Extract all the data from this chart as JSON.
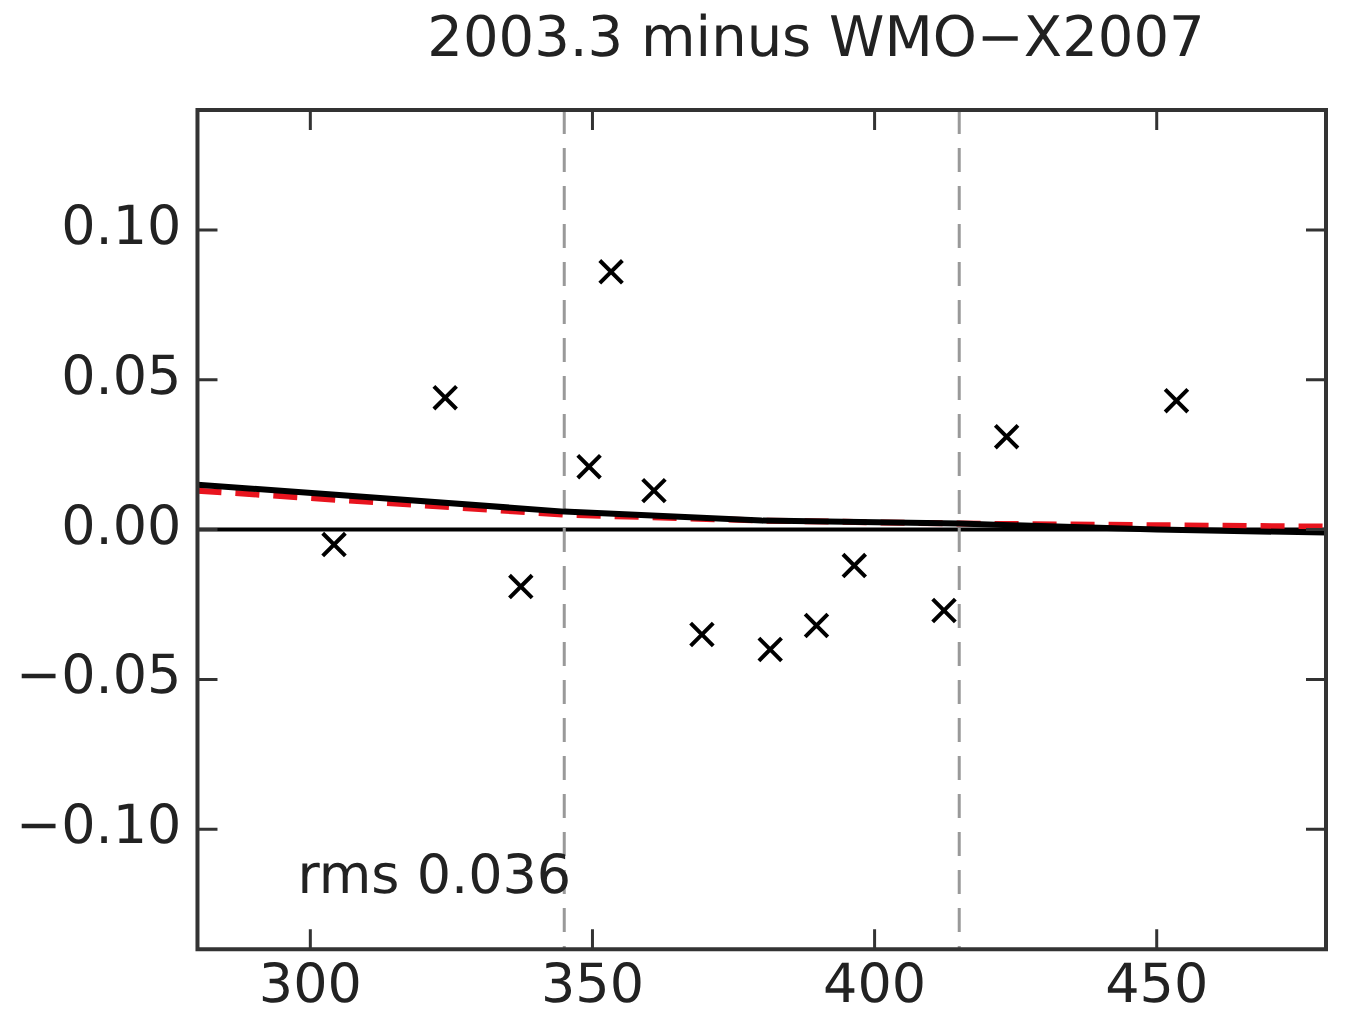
{
  "chart_data": {
    "type": "scatter",
    "title": "2003.3 minus WMO−X2007",
    "xlim": [
      280,
      480
    ],
    "ylim": [
      -0.14,
      0.14
    ],
    "xticks": [
      300,
      350,
      400,
      450
    ],
    "yticks": [
      {
        "value": 0.1,
        "label": "0.10"
      },
      {
        "value": 0.05,
        "label": "0.05"
      },
      {
        "value": 0,
        "label": "0.00"
      },
      {
        "value": -0.05,
        "label": "−0.05"
      },
      {
        "value": -0.1,
        "label": "−0.10"
      }
    ],
    "grid": false,
    "legend": false,
    "series": [
      {
        "type": "scatter",
        "color": "#000000",
        "marker": "cross",
        "x": [
          304.2,
          323.9,
          337.3,
          349.4,
          353.3,
          360.9,
          369.4,
          381.5,
          389.7,
          396.4,
          412.3,
          423.4,
          453.5
        ],
        "values": [
          -0.005,
          0.044,
          -0.019,
          0.021,
          0.086,
          0.013,
          -0.035,
          -0.04,
          -0.032,
          -0.012,
          -0.027,
          0.031,
          0.043
        ]
      },
      {
        "type": "line",
        "color": "#000000",
        "marker": "none",
        "line_style": "solid",
        "x": [
          280,
          345,
          380,
          415,
          450,
          480
        ],
        "values": [
          0.015,
          0.006,
          0.003,
          0.002,
          0.0,
          -0.001
        ]
      },
      {
        "type": "line",
        "color": "#e8141e",
        "marker": "none",
        "line_style": "dashed",
        "x": [
          280,
          345,
          380,
          415,
          480
        ],
        "values": [
          0.013,
          0.005,
          0.003,
          0.002,
          0.001
        ]
      }
    ],
    "ref_lines": [
      {
        "axis": "y",
        "value": 0,
        "color": "#000000",
        "line_style": "solid"
      },
      {
        "axis": "x",
        "value": 345,
        "color": "#999999",
        "line_style": "dashed"
      },
      {
        "axis": "x",
        "value": 415,
        "color": "#999999",
        "line_style": "dashed"
      }
    ],
    "annotations": [
      "rms 0.036"
    ]
  }
}
